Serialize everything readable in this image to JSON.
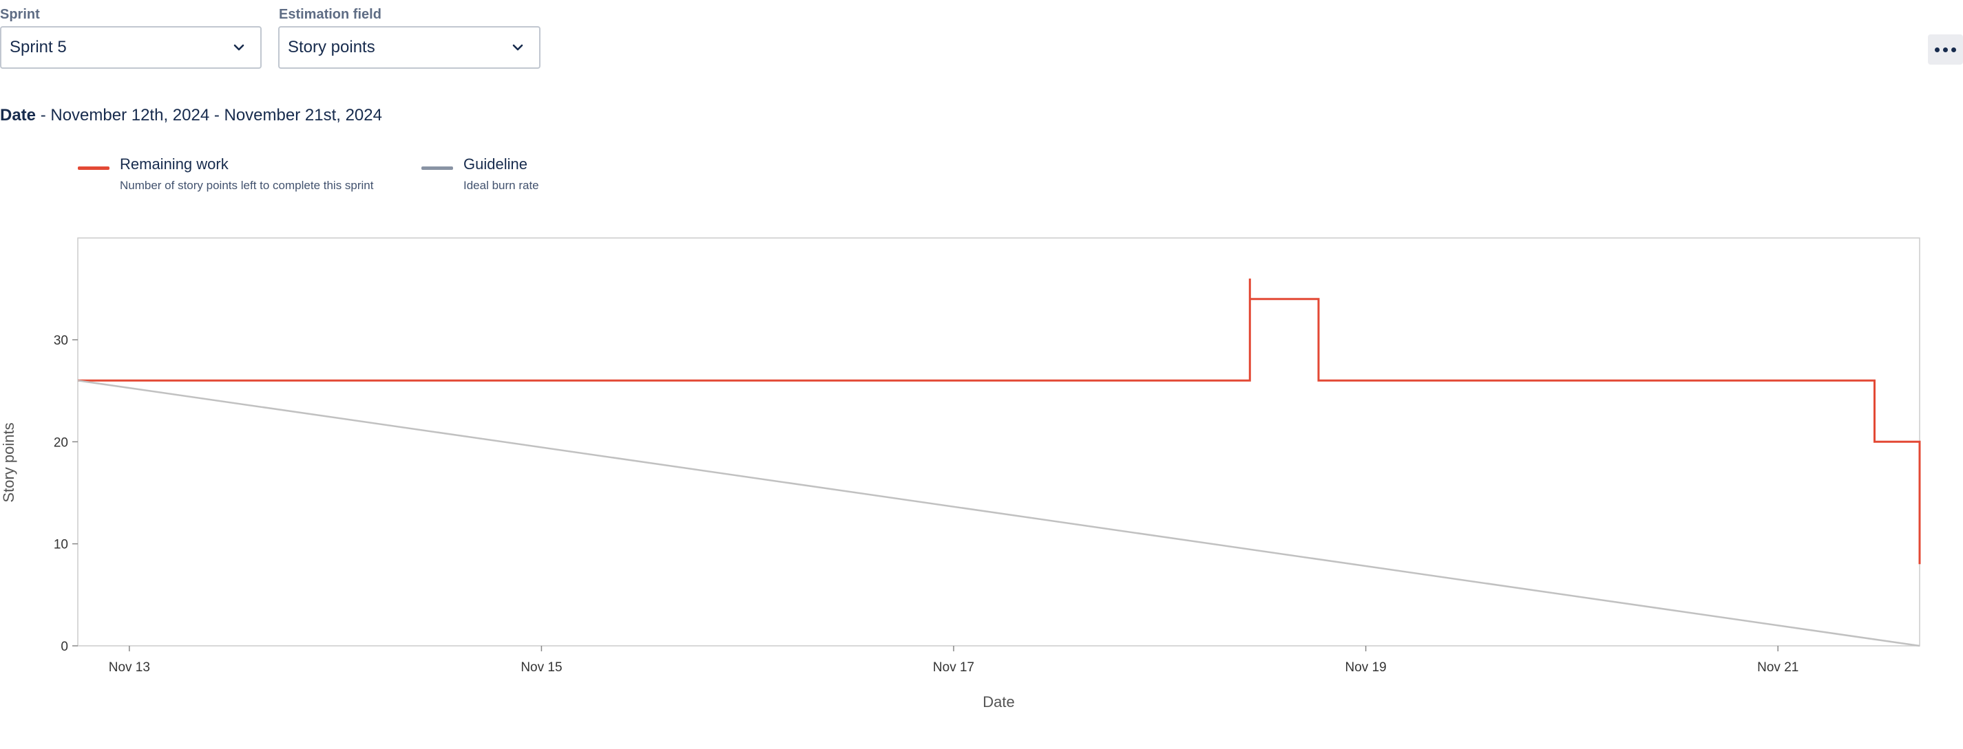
{
  "controls": {
    "sprint": {
      "label": "Sprint",
      "value": "Sprint 5"
    },
    "estimation": {
      "label": "Estimation field",
      "value": "Story points"
    }
  },
  "date_range": {
    "label": "Date",
    "separator": " - ",
    "value": "November 12th, 2024 - November 21st, 2024"
  },
  "legend": [
    {
      "name": "Remaining work",
      "description": "Number of story points left to complete this sprint",
      "color": "#e34935"
    },
    {
      "name": "Guideline",
      "description": "Ideal burn rate",
      "color": "#8993a4"
    }
  ],
  "chart_data": {
    "type": "line",
    "xlabel": "Date",
    "ylabel": "Story points",
    "xlim": [
      "2024-11-12T18:00",
      "2024-11-21T16:30"
    ],
    "ylim": [
      0,
      40
    ],
    "yticks": [
      0,
      10,
      20,
      30
    ],
    "xticks": [
      {
        "x": "2024-11-13T00:00",
        "label": "Nov 13"
      },
      {
        "x": "2024-11-15T00:00",
        "label": "Nov 15"
      },
      {
        "x": "2024-11-17T00:00",
        "label": "Nov 17"
      },
      {
        "x": "2024-11-19T00:00",
        "label": "Nov 19"
      },
      {
        "x": "2024-11-21T00:00",
        "label": "Nov 21"
      }
    ],
    "grid": false,
    "series": [
      {
        "name": "Remaining work",
        "color": "#e34935",
        "step": true,
        "points": [
          [
            "2024-11-12T18:00",
            26
          ],
          [
            "2024-11-18T10:30",
            26
          ],
          [
            "2024-11-18T10:30",
            36
          ],
          [
            "2024-11-18T10:30",
            34
          ],
          [
            "2024-11-18T18:30",
            34
          ],
          [
            "2024-11-18T18:30",
            26
          ],
          [
            "2024-11-21T11:15",
            26
          ],
          [
            "2024-11-21T11:15",
            20
          ],
          [
            "2024-11-21T16:30",
            20
          ],
          [
            "2024-11-21T16:30",
            8
          ]
        ]
      },
      {
        "name": "Guideline",
        "color": "#c1c1c1",
        "points": [
          [
            "2024-11-12T18:00",
            26
          ],
          [
            "2024-11-21T16:30",
            0
          ]
        ]
      }
    ]
  }
}
